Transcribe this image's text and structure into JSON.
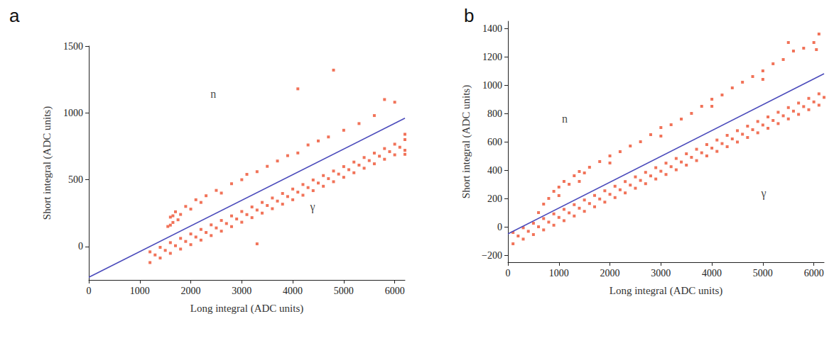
{
  "chart_data": [
    {
      "type": "scatter",
      "title": "a",
      "x_label": "Long integral (ADC units)",
      "y_label": "Short integral (ADC units)",
      "xlim": [
        0,
        6200
      ],
      "xticks": [
        0,
        1000,
        2000,
        3000,
        4000,
        5000,
        6000
      ],
      "ylim": [
        -250,
        1500
      ],
      "yticks": [
        0,
        500,
        1000,
        1500
      ],
      "grid": false,
      "annotations": [
        {
          "text": "n",
          "x": 2440,
          "y": 1140
        },
        {
          "text": "γ",
          "x": 4390,
          "y": 300
        }
      ],
      "series": [
        {
          "type": "scatter",
          "color": "#ee5a3c",
          "marker": "square",
          "x": [
            1200,
            1200,
            1300,
            1400,
            1400,
            1500,
            1600,
            1600,
            1700,
            1800,
            1800,
            1900,
            2000,
            2000,
            2100,
            2200,
            2200,
            2300,
            2400,
            2400,
            2500,
            2600,
            2600,
            2700,
            2800,
            2800,
            2900,
            3000,
            3000,
            3100,
            3200,
            3200,
            3300,
            3400,
            3400,
            3500,
            3600,
            3600,
            3700,
            3800,
            3800,
            3900,
            4000,
            4000,
            4100,
            4200,
            4200,
            4300,
            4400,
            4400,
            4500,
            4600,
            4600,
            4700,
            4800,
            4800,
            4900,
            5000,
            5000,
            5100,
            5200,
            5200,
            5300,
            5400,
            5400,
            5500,
            5600,
            5600,
            5700,
            5800,
            5800,
            5900,
            6000,
            6000,
            6100,
            6200,
            6200,
            6200,
            6200
          ],
          "values": [
            -120,
            -40,
            -63,
            -86,
            -6,
            -29,
            -51,
            29,
            6,
            -19,
            61,
            38,
            14,
            94,
            71,
            48,
            128,
            105,
            82,
            162,
            139,
            115,
            195,
            172,
            149,
            229,
            206,
            182,
            262,
            239,
            216,
            296,
            273,
            250,
            330,
            307,
            283,
            363,
            340,
            317,
            397,
            374,
            350,
            430,
            407,
            384,
            464,
            441,
            418,
            498,
            475,
            451,
            531,
            508,
            485,
            565,
            542,
            518,
            598,
            575,
            552,
            632,
            609,
            586,
            666,
            643,
            619,
            699,
            676,
            653,
            733,
            710,
            686,
            766,
            743,
            720,
            800,
            840,
            690
          ]
        },
        {
          "type": "scatter",
          "color": "#ee5a3c",
          "marker": "square",
          "x": [
            1550,
            1600,
            1600,
            1650,
            1650,
            1700,
            1750,
            1800,
            1900,
            2000,
            2100,
            2200,
            2300,
            2500,
            2600,
            2800,
            3000,
            3100,
            3300,
            3500,
            3700,
            3900,
            4100,
            4300,
            4500,
            4700,
            5000,
            5300,
            5600,
            5800,
            6000,
            4100,
            4800,
            3300
          ],
          "values": [
            150,
            220,
            160,
            180,
            230,
            260,
            200,
            240,
            300,
            280,
            350,
            330,
            380,
            420,
            400,
            470,
            500,
            540,
            560,
            600,
            640,
            680,
            700,
            760,
            790,
            820,
            870,
            920,
            980,
            1100,
            1080,
            1180,
            1320,
            20
          ]
        },
        {
          "type": "line",
          "color": "#4b4bbb",
          "line_style": "solid",
          "x": [
            0,
            6200
          ],
          "values": [
            -230,
            960
          ]
        }
      ]
    },
    {
      "type": "scatter",
      "title": "b",
      "x_label": "Long integral (ADC units)",
      "y_label": "Short integral (ADC units)",
      "xlim": [
        0,
        6200
      ],
      "xticks": [
        0,
        1000,
        2000,
        3000,
        4000,
        5000,
        6000
      ],
      "ylim": [
        -250,
        1450
      ],
      "yticks": [
        {
          "value": -200,
          "label": "−200"
        },
        0,
        200,
        400,
        600,
        800,
        1000,
        1200,
        1400
      ],
      "grid": false,
      "annotations": [
        {
          "text": "n",
          "x": 1115,
          "y": 765
        },
        {
          "text": "γ",
          "x": 5015,
          "y": 240
        }
      ],
      "series": [
        {
          "type": "scatter",
          "color": "#ee5a3c",
          "marker": "square",
          "x": [
            100,
            100,
            200,
            300,
            300,
            400,
            500,
            500,
            600,
            700,
            700,
            800,
            900,
            900,
            1000,
            1100,
            1100,
            1200,
            1300,
            1300,
            1400,
            1500,
            1500,
            1600,
            1700,
            1700,
            1800,
            1900,
            1900,
            2000,
            2100,
            2100,
            2200,
            2300,
            2300,
            2400,
            2500,
            2500,
            2600,
            2700,
            2700,
            2800,
            2900,
            2900,
            3000,
            3100,
            3100,
            3200,
            3300,
            3300,
            3400,
            3500,
            3500,
            3600,
            3700,
            3700,
            3800,
            3900,
            3900,
            4000,
            4100,
            4100,
            4200,
            4300,
            4300,
            4400,
            4500,
            4500,
            4600,
            4700,
            4700,
            4800,
            4900,
            4900,
            5000,
            5100,
            5100,
            5200,
            5300,
            5300,
            5400,
            5500,
            5500,
            5600,
            5700,
            5700,
            5800,
            5900,
            5900,
            6000,
            6100,
            6100,
            6200
          ],
          "values": [
            -120,
            -40,
            -65,
            -87,
            -7,
            -32,
            -55,
            25,
            0,
            -22,
            58,
            33,
            11,
            91,
            66,
            43,
            123,
            98,
            76,
            156,
            131,
            109,
            189,
            164,
            141,
            221,
            196,
            174,
            254,
            229,
            206,
            286,
            261,
            239,
            319,
            294,
            272,
            352,
            327,
            304,
            384,
            359,
            337,
            417,
            392,
            369,
            449,
            424,
            402,
            482,
            457,
            435,
            515,
            490,
            467,
            547,
            522,
            500,
            580,
            555,
            532,
            612,
            587,
            565,
            645,
            620,
            598,
            678,
            653,
            630,
            710,
            685,
            663,
            743,
            718,
            695,
            775,
            750,
            728,
            808,
            783,
            761,
            841,
            816,
            793,
            873,
            848,
            826,
            906,
            881,
            858,
            938,
            913
          ]
        },
        {
          "type": "scatter",
          "color": "#ee5a3c",
          "marker": "square",
          "x": [
            600,
            700,
            800,
            900,
            1000,
            1000,
            1100,
            1200,
            1300,
            1400,
            1400,
            1500,
            1600,
            1800,
            2000,
            2000,
            2200,
            2400,
            2600,
            2800,
            3000,
            3000,
            3200,
            3400,
            3600,
            3800,
            4000,
            4000,
            4200,
            4400,
            4600,
            4800,
            5000,
            5000,
            5200,
            5400,
            5500,
            5600,
            5800,
            6000,
            6050,
            6100
          ],
          "values": [
            100,
            160,
            200,
            250,
            280,
            220,
            320,
            300,
            360,
            390,
            320,
            380,
            420,
            460,
            500,
            450,
            530,
            570,
            600,
            650,
            700,
            640,
            720,
            760,
            800,
            850,
            900,
            850,
            930,
            980,
            1020,
            1060,
            1100,
            1040,
            1150,
            1180,
            1300,
            1240,
            1260,
            1300,
            1250,
            1360
          ]
        },
        {
          "type": "line",
          "color": "#4b4bbb",
          "line_style": "solid",
          "x": [
            0,
            6200
          ],
          "values": [
            -50,
            1080
          ]
        }
      ]
    }
  ]
}
